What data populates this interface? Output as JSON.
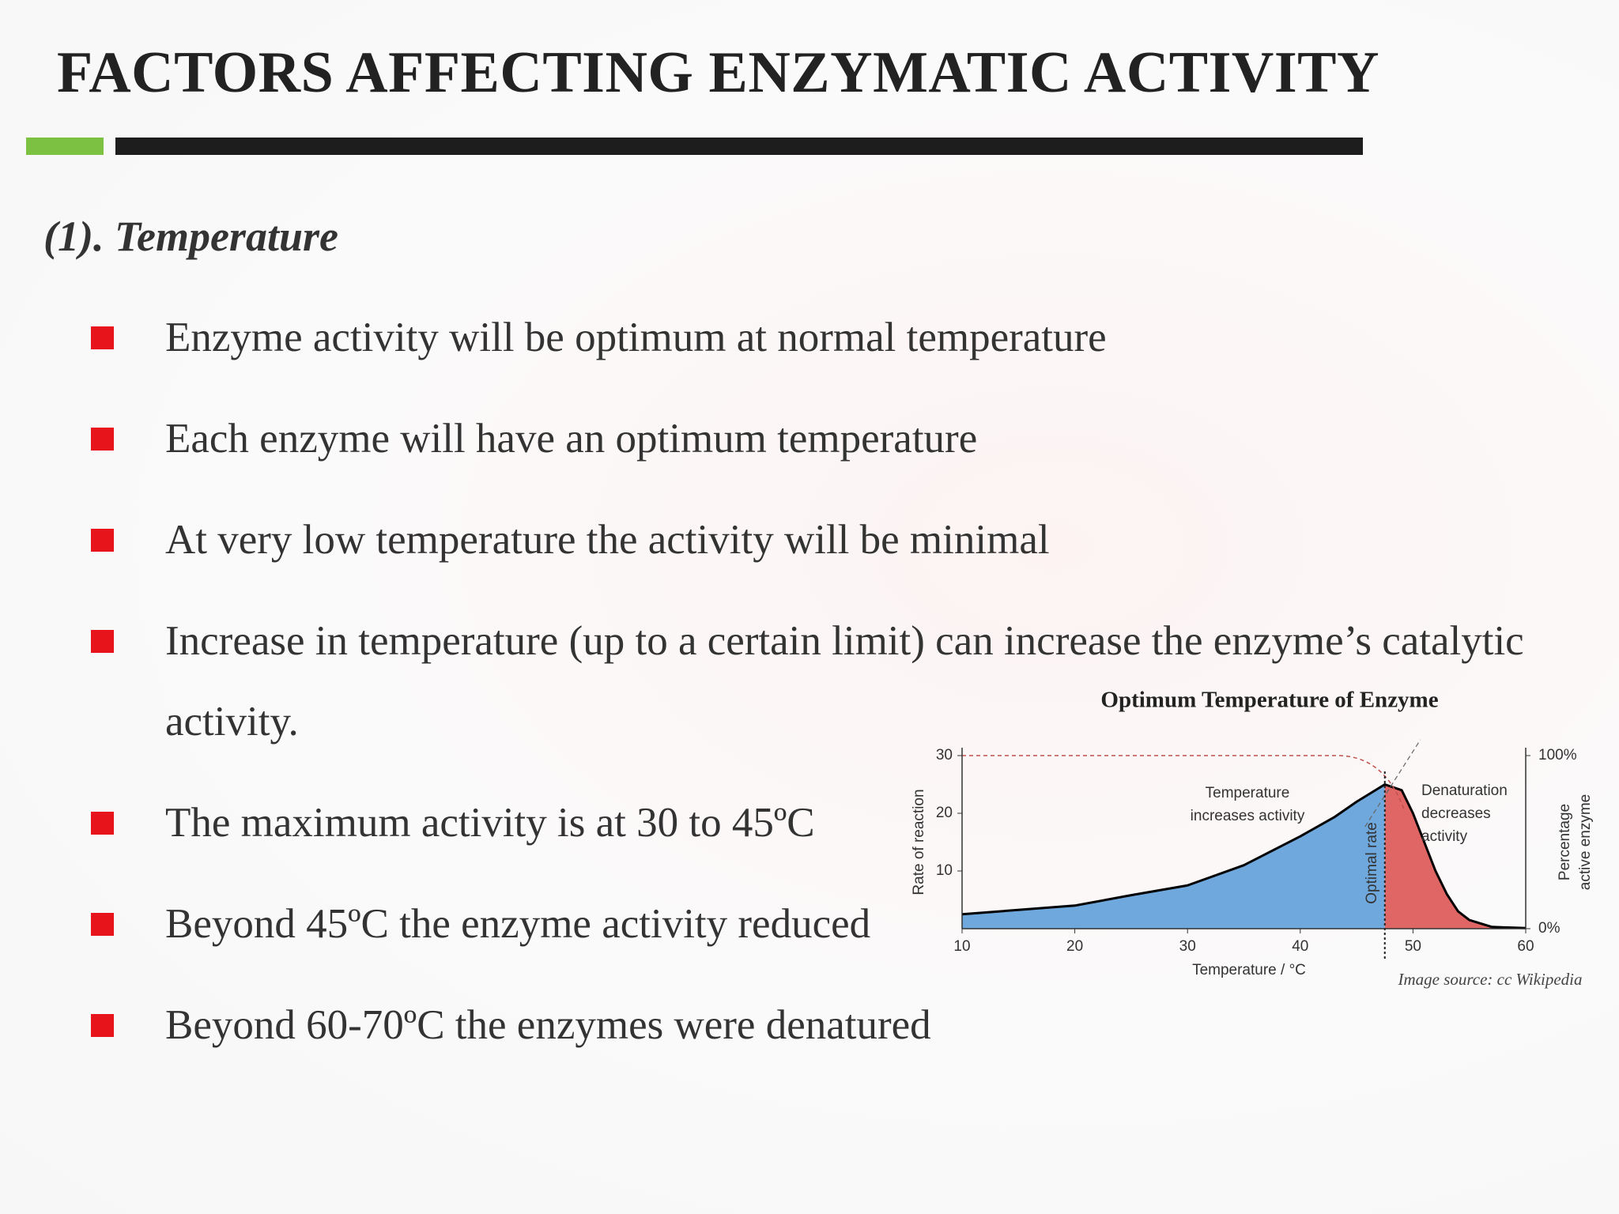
{
  "header": {
    "title": "FACTORS AFFECTING ENZYMATIC ACTIVITY"
  },
  "section": {
    "title": "(1). Temperature"
  },
  "bullets": [
    "Enzyme activity will be optimum at normal temperature",
    "Each enzyme will have an optimum temperature",
    "At very low temperature the activity will be minimal",
    "Increase in temperature (up to a certain limit) can increase the enzyme’s catalytic activity.",
    "The maximum activity is at 30 to 45ºC",
    "Beyond 45ºC the enzyme activity reduced",
    "Beyond 60-70ºC the enzymes were denatured"
  ],
  "chart_data": {
    "type": "area",
    "title": "Optimum Temperature of Enzyme",
    "x": [
      10,
      20,
      25,
      30,
      35,
      40,
      43,
      45,
      46,
      47.5,
      49,
      50,
      51,
      52,
      53,
      54,
      55,
      57,
      60
    ],
    "values": [
      2.5,
      4,
      5.8,
      7.5,
      11,
      16,
      19.3,
      22,
      23.2,
      25,
      24,
      20,
      15,
      10,
      6,
      3,
      1.5,
      0.3,
      0.1
    ],
    "optimum": 47.5,
    "colors": {
      "rising": "#6fa8dc",
      "falling": "#e06666",
      "line": "#000000"
    },
    "xlim": [
      10,
      60
    ],
    "xticks": [
      10,
      20,
      30,
      40,
      50,
      60
    ],
    "ylim": [
      0,
      30
    ],
    "yticks": [
      10,
      20,
      30
    ],
    "y2lim": [
      0,
      100
    ],
    "y2ticks": [
      {
        "value": 0,
        "label": "0%"
      },
      {
        "value": 100,
        "label": "100%"
      }
    ],
    "xlabel": "Temperature / °C",
    "ylabel": "Rate of reaction",
    "y2label": [
      "Percentage",
      "active enzyme"
    ],
    "annotations": {
      "rising": [
        "Temperature",
        "increases activity"
      ],
      "falling": [
        "Denaturation",
        "decreases",
        "activity"
      ],
      "optimum": "Optimal rate"
    },
    "source": "Image source: cc Wikipedia"
  }
}
